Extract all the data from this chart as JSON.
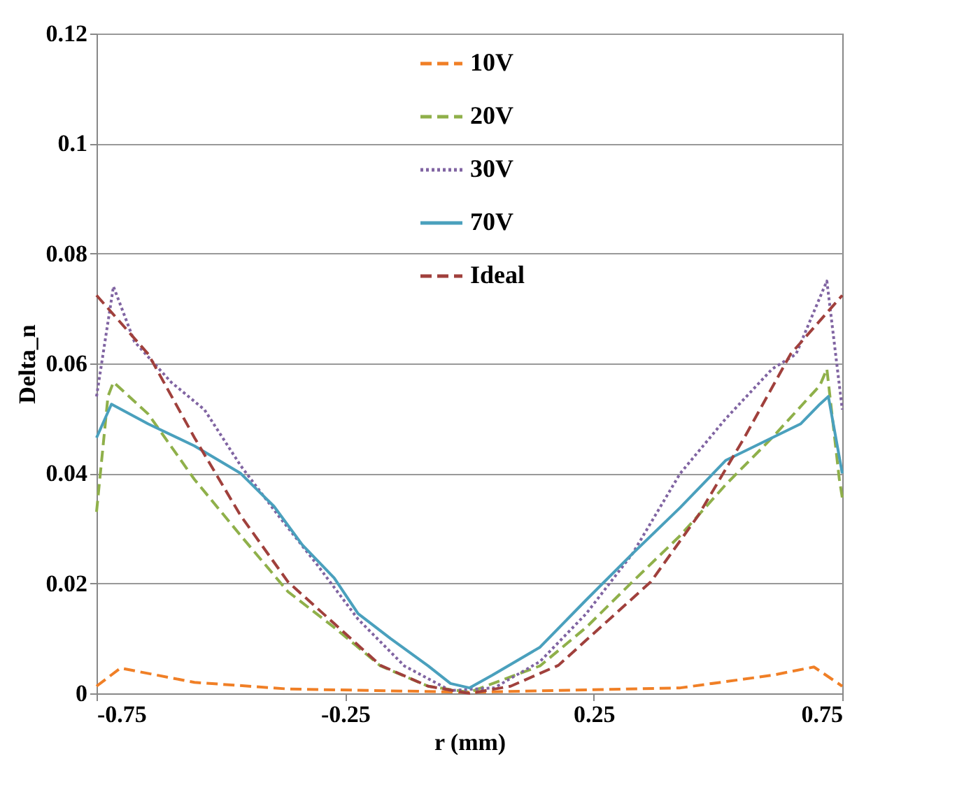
{
  "chart_data": {
    "type": "line",
    "xlabel": "r (mm)",
    "ylabel": "Delta_n",
    "xlim": [
      -0.75,
      0.75
    ],
    "ylim": [
      0,
      0.12
    ],
    "xticks": [
      -0.75,
      -0.25,
      0.25,
      0.75
    ],
    "yticks": [
      0,
      0.02,
      0.04,
      0.06,
      0.08,
      0.1,
      0.12
    ],
    "grid": "y",
    "legend": "top",
    "marker": "none",
    "series": [
      {
        "name": "10V",
        "color": "#f07f26",
        "line_style": "dashed",
        "x": [
          -0.75,
          -0.702,
          -0.553,
          -0.365,
          0,
          0.424,
          0.609,
          0.693,
          0.75
        ],
        "values": [
          0.0013,
          0.0046,
          0.002,
          0.0008,
          0.0002,
          0.001,
          0.0033,
          0.0048,
          0.0013
        ]
      },
      {
        "name": "20V",
        "color": "#8fb04a",
        "line_style": "dashed",
        "x": [
          -0.75,
          -0.727,
          -0.716,
          -0.646,
          -0.553,
          -0.46,
          -0.365,
          -0.272,
          -0.179,
          -0.083,
          0,
          0.142,
          0.235,
          0.328,
          0.424,
          0.516,
          0.609,
          0.705,
          0.719,
          0.744,
          0.75
        ],
        "values": [
          0.033,
          0.054,
          0.0566,
          0.0508,
          0.0389,
          0.0287,
          0.0185,
          0.012,
          0.005,
          0.0013,
          0.0002,
          0.005,
          0.012,
          0.0203,
          0.0287,
          0.038,
          0.0465,
          0.056,
          0.059,
          0.039,
          0.0356
        ]
      },
      {
        "name": "30V",
        "color": "#8064a2",
        "line_style": "dotted",
        "x": [
          -0.75,
          -0.716,
          -0.674,
          -0.6,
          -0.533,
          -0.46,
          -0.384,
          -0.308,
          -0.224,
          -0.131,
          -0.038,
          0.05,
          0.142,
          0.235,
          0.328,
          0.424,
          0.516,
          0.609,
          0.657,
          0.719,
          0.75
        ],
        "values": [
          0.054,
          0.074,
          0.064,
          0.0566,
          0.0516,
          0.0414,
          0.0323,
          0.0236,
          0.0135,
          0.005,
          0.0005,
          0.001,
          0.0058,
          0.0145,
          0.0254,
          0.04,
          0.05,
          0.059,
          0.0617,
          0.075,
          0.0516
        ]
      },
      {
        "name": "70V",
        "color": "#4aa0bd",
        "line_style": "solid",
        "x": [
          -0.75,
          -0.72,
          -0.646,
          -0.553,
          -0.46,
          -0.393,
          -0.336,
          -0.272,
          -0.224,
          -0.159,
          -0.083,
          -0.038,
          0,
          0.046,
          0.142,
          0.235,
          0.328,
          0.424,
          0.516,
          0.609,
          0.666,
          0.705,
          0.722,
          0.75
        ],
        "values": [
          0.0465,
          0.0526,
          0.049,
          0.045,
          0.04,
          0.034,
          0.027,
          0.021,
          0.0145,
          0.01,
          0.005,
          0.0018,
          0.001,
          0.0033,
          0.0084,
          0.017,
          0.0254,
          0.0338,
          0.0424,
          0.0465,
          0.049,
          0.0526,
          0.054,
          0.04
        ]
      },
      {
        "name": "Ideal",
        "color": "#a0403c",
        "line_style": "dashed",
        "x": [
          -0.75,
          -0.646,
          -0.553,
          -0.46,
          -0.365,
          -0.272,
          -0.179,
          -0.083,
          0,
          0.083,
          0.179,
          0.272,
          0.365,
          0.46,
          0.553,
          0.646,
          0.75
        ],
        "values": [
          0.0724,
          0.0617,
          0.0465,
          0.0323,
          0.0203,
          0.0127,
          0.0051,
          0.0013,
          0,
          0.0013,
          0.0051,
          0.0127,
          0.0203,
          0.0323,
          0.0465,
          0.0617,
          0.0724
        ]
      }
    ]
  }
}
